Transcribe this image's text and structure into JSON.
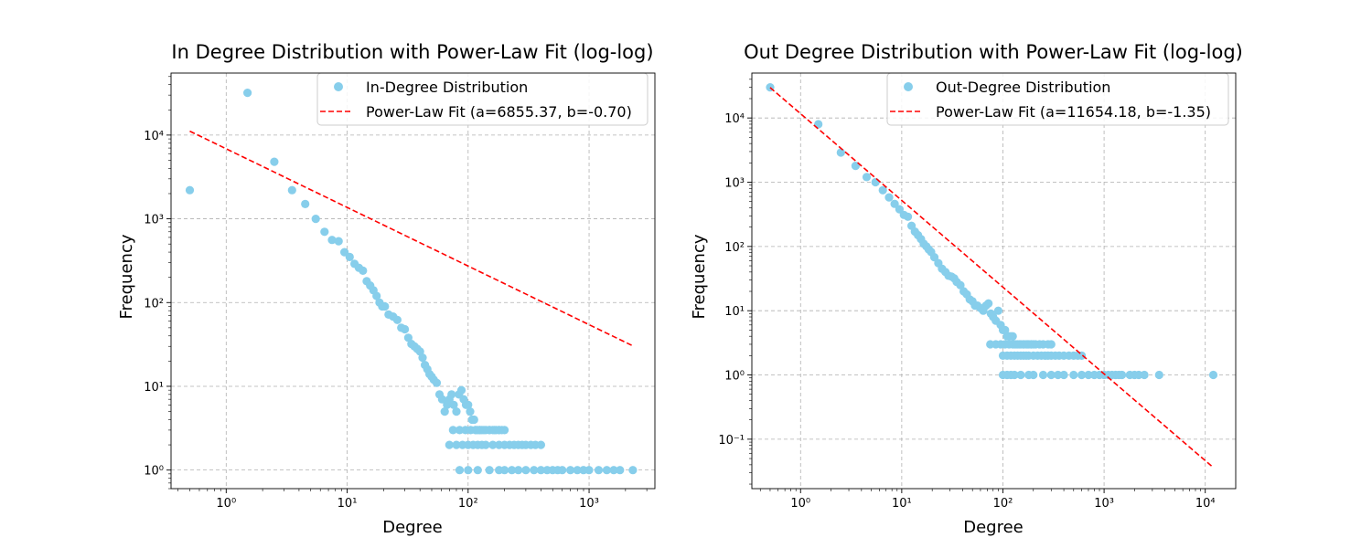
{
  "charts": [
    {
      "title": "In Degree Distribution with Power-Law Fit (log-log)",
      "xlabel": "Degree",
      "ylabel": "Frequency",
      "legend": [
        "In-Degree Distribution",
        "Power-Law Fit (a=6855.37, b=-0.70)"
      ]
    },
    {
      "title": "Out Degree Distribution with Power-Law Fit (log-log)",
      "xlabel": "Degree",
      "ylabel": "Frequency",
      "legend": [
        "Out-Degree Distribution",
        "Power-Law Fit (a=11654.18, b=-1.35)"
      ]
    }
  ],
  "chart_data": [
    {
      "type": "scatter",
      "title": "In Degree Distribution with Power-Law Fit (log-log)",
      "xlabel": "Degree",
      "ylabel": "Frequency",
      "xscale": "log",
      "yscale": "log",
      "xlim": [
        0.35,
        3500
      ],
      "ylim": [
        0.6,
        55000
      ],
      "xticks": [
        1,
        10,
        100,
        1000
      ],
      "yticks": [
        1,
        10,
        100,
        1000,
        10000
      ],
      "grid": true,
      "legend_position": "top-right",
      "colors": {
        "points": "#87ceeb",
        "fit": "#ff0000"
      },
      "series": [
        {
          "name": "In-Degree Distribution",
          "kind": "points",
          "x": [
            0.5,
            1.5,
            2.5,
            3.5,
            4.5,
            5.5,
            6.5,
            7.5,
            8.5,
            9.5,
            10.5,
            11.5,
            12.5,
            13.5,
            14.5,
            15.5,
            16.5,
            17.5,
            18.5,
            19.5,
            20.5,
            22,
            24,
            26,
            28,
            30,
            32,
            34,
            36,
            38,
            40,
            42,
            44,
            46,
            48,
            50,
            52,
            55,
            58,
            61,
            64,
            67,
            70,
            73,
            76,
            80,
            84,
            88,
            92,
            96,
            100,
            104,
            108,
            112,
            116,
            120,
            125,
            130,
            140,
            150,
            160,
            170,
            180,
            190,
            75,
            85,
            95,
            105,
            115,
            125,
            135,
            150,
            165,
            180,
            200,
            70,
            80,
            90,
            100,
            110,
            120,
            130,
            140,
            160,
            180,
            200,
            220,
            240,
            260,
            280,
            300,
            330,
            360,
            400,
            85,
            100,
            120,
            150,
            180,
            200,
            230,
            260,
            300,
            350,
            400,
            450,
            500,
            550,
            600,
            700,
            800,
            900,
            1000,
            1200,
            1400,
            1600,
            1800,
            2300
          ],
          "y": [
            2200,
            32000,
            4800,
            2200,
            1500,
            1000,
            700,
            560,
            540,
            400,
            350,
            290,
            260,
            240,
            180,
            160,
            140,
            120,
            100,
            90,
            90,
            72,
            68,
            62,
            50,
            48,
            38,
            32,
            30,
            28,
            26,
            22,
            18,
            16,
            14,
            13,
            12,
            11,
            8,
            7,
            5,
            6,
            7,
            8,
            6,
            5,
            8,
            9,
            7,
            6,
            6,
            5,
            4,
            4,
            3,
            3,
            3,
            3,
            3,
            3,
            3,
            3,
            3,
            3,
            3,
            3,
            3,
            3,
            3,
            3,
            3,
            3,
            3,
            3,
            3,
            2,
            2,
            2,
            2,
            2,
            2,
            2,
            2,
            2,
            2,
            2,
            2,
            2,
            2,
            2,
            2,
            2,
            2,
            2,
            1,
            1,
            1,
            1,
            1,
            1,
            1,
            1,
            1,
            1,
            1,
            1,
            1,
            1,
            1,
            1,
            1,
            1,
            1,
            1,
            1,
            1,
            1,
            1
          ]
        },
        {
          "name": "Power-Law Fit (a=6855.37, b=-0.70)",
          "kind": "line",
          "a": 6855.37,
          "b": -0.7,
          "x_range": [
            0.5,
            2300
          ]
        }
      ]
    },
    {
      "type": "scatter",
      "title": "Out Degree Distribution with Power-Law Fit (log-log)",
      "xlabel": "Degree",
      "ylabel": "Frequency",
      "xscale": "log",
      "yscale": "log",
      "xlim": [
        0.33,
        20000
      ],
      "ylim": [
        0.017,
        50000
      ],
      "xticks": [
        1,
        10,
        100,
        1000,
        10000
      ],
      "yticks": [
        0.1,
        1,
        10,
        100,
        1000,
        10000
      ],
      "grid": true,
      "legend_position": "top-right",
      "colors": {
        "points": "#87ceeb",
        "fit": "#ff0000"
      },
      "series": [
        {
          "name": "Out-Degree Distribution",
          "kind": "points",
          "x": [
            0.5,
            1.5,
            2.5,
            3.5,
            4.5,
            5.5,
            6.5,
            7.5,
            8.5,
            9.5,
            10.5,
            11.5,
            12.5,
            13.5,
            14.5,
            15.5,
            16.5,
            17.5,
            18.5,
            19.5,
            21,
            23,
            25,
            27,
            29,
            31,
            33,
            35,
            38,
            41,
            44,
            47,
            50,
            53,
            56,
            60,
            64,
            68,
            72,
            76,
            80,
            85,
            90,
            95,
            100,
            105,
            110,
            115,
            120,
            125,
            130,
            140,
            150,
            160,
            170,
            180,
            190,
            200,
            75,
            85,
            95,
            105,
            115,
            125,
            135,
            145,
            160,
            175,
            190,
            210,
            230,
            250,
            280,
            300,
            100,
            110,
            120,
            130,
            140,
            150,
            160,
            170,
            180,
            200,
            220,
            240,
            260,
            280,
            300,
            330,
            360,
            400,
            450,
            500,
            550,
            600,
            100,
            110,
            120,
            130,
            150,
            180,
            200,
            250,
            300,
            350,
            400,
            500,
            600,
            700,
            800,
            900,
            1000,
            1100,
            1200,
            1300,
            1400,
            1500,
            1800,
            2000,
            2200,
            2500,
            3500,
            12000
          ],
          "y": [
            30000,
            8000,
            2900,
            1800,
            1200,
            1000,
            750,
            580,
            460,
            380,
            310,
            290,
            210,
            170,
            150,
            130,
            110,
            100,
            90,
            82,
            68,
            55,
            45,
            40,
            35,
            34,
            32,
            28,
            25,
            20,
            18,
            15,
            14,
            12,
            12,
            11,
            10,
            12,
            13,
            9,
            8,
            7,
            10,
            6,
            5,
            5,
            4,
            4,
            4,
            4,
            3,
            3,
            3,
            3,
            3,
            3,
            3,
            3,
            3,
            3,
            3,
            3,
            3,
            3,
            3,
            3,
            3,
            3,
            3,
            3,
            3,
            3,
            3,
            3,
            2,
            2,
            2,
            2,
            2,
            2,
            2,
            2,
            2,
            2,
            2,
            2,
            2,
            2,
            2,
            2,
            2,
            2,
            2,
            2,
            2,
            2,
            1,
            1,
            1,
            1,
            1,
            1,
            1,
            1,
            1,
            1,
            1,
            1,
            1,
            1,
            1,
            1,
            1,
            1,
            1,
            1,
            1,
            1,
            1,
            1,
            1,
            1,
            1,
            1
          ]
        },
        {
          "name": "Power-Law Fit (a=11654.18, b=-1.35)",
          "kind": "line",
          "a": 11654.18,
          "b": -1.35,
          "x_range": [
            0.5,
            12000
          ]
        }
      ]
    }
  ]
}
